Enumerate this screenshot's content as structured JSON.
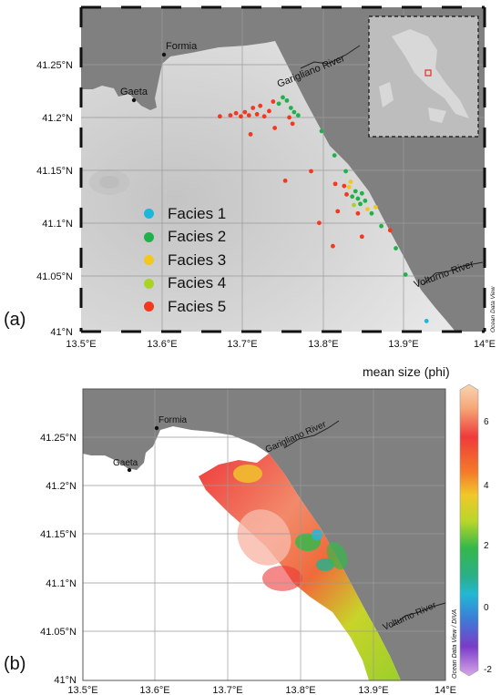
{
  "panel_a": {
    "label": "(a)",
    "places": [
      {
        "name": "Formia",
        "lon": 13.605,
        "lat": 41.256,
        "dot": true
      },
      {
        "name": "Gaeta",
        "lon": 13.567,
        "lat": 41.215,
        "dot": true
      }
    ],
    "rivers": [
      {
        "name": "Garigliano River",
        "rotate": -22
      },
      {
        "name": "Volturno River",
        "rotate": -20
      }
    ],
    "lat_ticks": [
      "41.25°N",
      "41.2°N",
      "41.15°N",
      "41.1°N",
      "41.05°N",
      "41°N"
    ],
    "lon_ticks": [
      "13.5°E",
      "13.6°E",
      "13.7°E",
      "13.8°E",
      "13.9°E",
      "14°E"
    ],
    "credit": "Ocean Data View",
    "legend": [
      {
        "label": "Facies 1",
        "color": "#1fb7d9"
      },
      {
        "label": "Facies 2",
        "color": "#20b24a"
      },
      {
        "label": "Facies 3",
        "color": "#f2c81e"
      },
      {
        "label": "Facies 4",
        "color": "#a8d42a"
      },
      {
        "label": "Facies 5",
        "color": "#f2391e"
      }
    ],
    "samples": [
      {
        "lon": 13.672,
        "lat": 41.204,
        "f": 5
      },
      {
        "lon": 13.685,
        "lat": 41.205,
        "f": 5
      },
      {
        "lon": 13.692,
        "lat": 41.207,
        "f": 5
      },
      {
        "lon": 13.698,
        "lat": 41.204,
        "f": 5
      },
      {
        "lon": 13.703,
        "lat": 41.208,
        "f": 5
      },
      {
        "lon": 13.708,
        "lat": 41.205,
        "f": 5
      },
      {
        "lon": 13.713,
        "lat": 41.212,
        "f": 5
      },
      {
        "lon": 13.718,
        "lat": 41.206,
        "f": 5
      },
      {
        "lon": 13.722,
        "lat": 41.214,
        "f": 5
      },
      {
        "lon": 13.727,
        "lat": 41.204,
        "f": 5
      },
      {
        "lon": 13.733,
        "lat": 41.209,
        "f": 5
      },
      {
        "lon": 13.738,
        "lat": 41.218,
        "f": 5
      },
      {
        "lon": 13.71,
        "lat": 41.187,
        "f": 5
      },
      {
        "lon": 13.74,
        "lat": 41.193,
        "f": 5
      },
      {
        "lon": 13.758,
        "lat": 41.203,
        "f": 5
      },
      {
        "lon": 13.762,
        "lat": 41.197,
        "f": 5
      },
      {
        "lon": 13.745,
        "lat": 41.216,
        "f": 2
      },
      {
        "lon": 13.75,
        "lat": 41.222,
        "f": 2
      },
      {
        "lon": 13.755,
        "lat": 41.219,
        "f": 2
      },
      {
        "lon": 13.76,
        "lat": 41.212,
        "f": 2
      },
      {
        "lon": 13.764,
        "lat": 41.208,
        "f": 2
      },
      {
        "lon": 13.769,
        "lat": 41.205,
        "f": 2
      },
      {
        "lon": 13.798,
        "lat": 41.19,
        "f": 2
      },
      {
        "lon": 13.814,
        "lat": 41.167,
        "f": 2
      },
      {
        "lon": 13.785,
        "lat": 41.152,
        "f": 5
      },
      {
        "lon": 13.753,
        "lat": 41.143,
        "f": 5
      },
      {
        "lon": 13.815,
        "lat": 41.14,
        "f": 5
      },
      {
        "lon": 13.828,
        "lat": 41.152,
        "f": 2
      },
      {
        "lon": 13.834,
        "lat": 41.142,
        "f": 3
      },
      {
        "lon": 13.832,
        "lat": 41.137,
        "f": 3
      },
      {
        "lon": 13.826,
        "lat": 41.138,
        "f": 5
      },
      {
        "lon": 13.829,
        "lat": 41.13,
        "f": 5
      },
      {
        "lon": 13.836,
        "lat": 41.128,
        "f": 2
      },
      {
        "lon": 13.84,
        "lat": 41.133,
        "f": 2
      },
      {
        "lon": 13.843,
        "lat": 41.126,
        "f": 2
      },
      {
        "lon": 13.846,
        "lat": 41.121,
        "f": 2
      },
      {
        "lon": 13.848,
        "lat": 41.131,
        "f": 2
      },
      {
        "lon": 13.852,
        "lat": 41.124,
        "f": 2
      },
      {
        "lon": 13.838,
        "lat": 41.12,
        "f": 4
      },
      {
        "lon": 13.855,
        "lat": 41.116,
        "f": 3
      },
      {
        "lon": 13.86,
        "lat": 41.112,
        "f": 2
      },
      {
        "lon": 13.865,
        "lat": 41.118,
        "f": 3
      },
      {
        "lon": 13.818,
        "lat": 41.114,
        "f": 5
      },
      {
        "lon": 13.843,
        "lat": 41.112,
        "f": 5
      },
      {
        "lon": 13.795,
        "lat": 41.103,
        "f": 5
      },
      {
        "lon": 13.812,
        "lat": 41.081,
        "f": 5
      },
      {
        "lon": 13.848,
        "lat": 41.09,
        "f": 5
      },
      {
        "lon": 13.872,
        "lat": 41.1,
        "f": 2
      },
      {
        "lon": 13.883,
        "lat": 41.096,
        "f": 5
      },
      {
        "lon": 13.89,
        "lat": 41.079,
        "f": 2
      },
      {
        "lon": 13.902,
        "lat": 41.054,
        "f": 2
      },
      {
        "lon": 13.928,
        "lat": 41.01,
        "f": 1
      }
    ]
  },
  "panel_b": {
    "label": "(b)",
    "colorbar_title": "mean size (phi)",
    "colorbar_ticks": [
      "6",
      "4",
      "2",
      "0",
      "-2"
    ],
    "places": [
      {
        "name": "Formia"
      },
      {
        "name": "Gaeta"
      }
    ],
    "rivers": [
      {
        "name": "Garigliano River"
      },
      {
        "name": "Volturno River"
      }
    ],
    "lat_ticks": [
      "41.25°N",
      "41.2°N",
      "41.15°N",
      "41.1°N",
      "41.05°N",
      "41°N"
    ],
    "lon_ticks": [
      "13.5°E",
      "13.6°E",
      "13.7°E",
      "13.8°E",
      "13.9°E",
      "14°E"
    ],
    "credit": "Ocean Data View / DIVA"
  }
}
